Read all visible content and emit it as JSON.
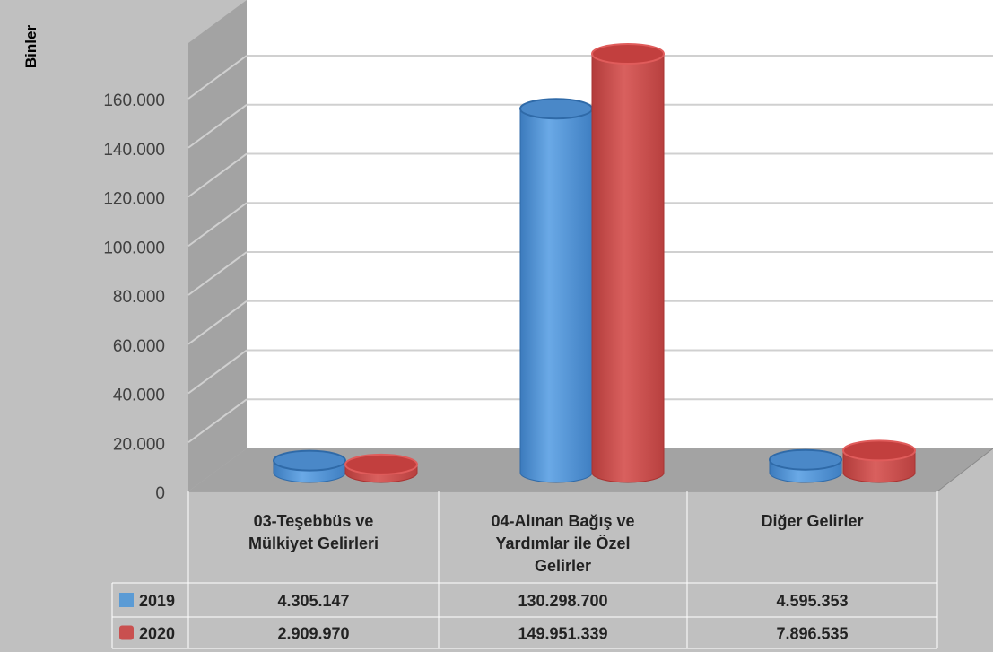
{
  "chart_data": {
    "type": "bar",
    "ylabel": "Binler",
    "ylim": [
      0,
      160000
    ],
    "yticks": [
      "0",
      "20.000",
      "40.000",
      "60.000",
      "80.000",
      "100.000",
      "120.000",
      "140.000",
      "160.000"
    ],
    "ytick_values": [
      0,
      20000,
      40000,
      60000,
      80000,
      100000,
      120000,
      140000,
      160000
    ],
    "grid": true,
    "categories": [
      [
        "03-Teşebbüs ve",
        "Mülkiyet Gelirleri"
      ],
      [
        "04-Alınan Bağış ve",
        "Yardımlar ile Özel",
        "Gelirler"
      ],
      [
        "Diğer Gelirler"
      ]
    ],
    "series": [
      {
        "name": "2019",
        "color": "#5b9bd5",
        "values": [
          4305.147,
          130298.7,
          4595.353
        ],
        "labels": [
          "4.305.147",
          "130.298.700",
          "4.595.353"
        ]
      },
      {
        "name": "2020",
        "color": "#c9504f",
        "values": [
          2909.97,
          149951.339,
          7896.535
        ],
        "labels": [
          "2.909.970",
          "149.951.339",
          "7.896.535"
        ]
      }
    ]
  }
}
